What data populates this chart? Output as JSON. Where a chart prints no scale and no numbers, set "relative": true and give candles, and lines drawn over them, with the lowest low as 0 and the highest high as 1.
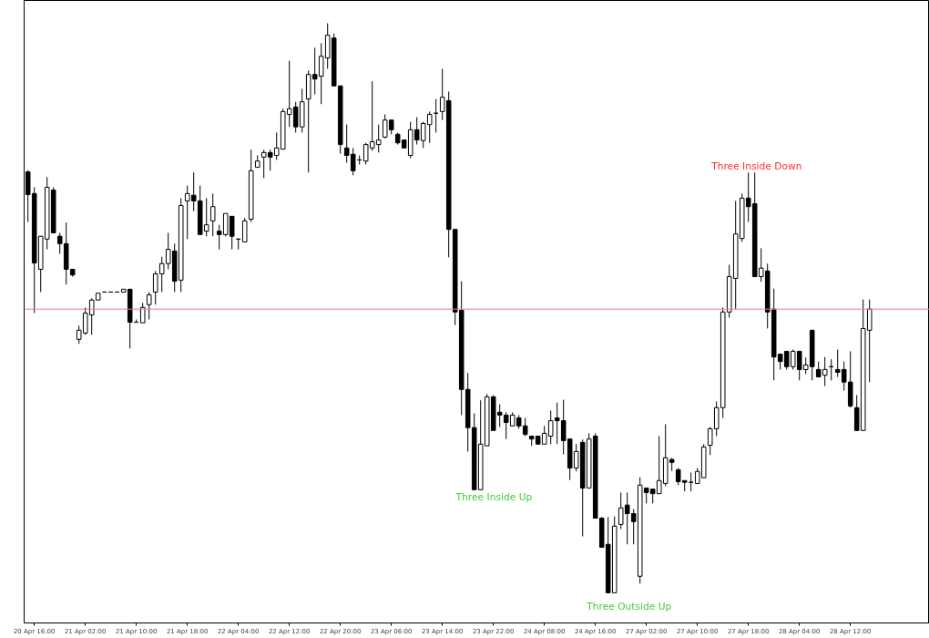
{
  "chart_data": {
    "type": "candlestick",
    "relative": true,
    "grid": false,
    "tick_labels": "x",
    "categories": [
      null,
      "20 Apr 16:00",
      null,
      null,
      null,
      null,
      null,
      null,
      null,
      "21 Apr 02:00",
      null,
      null,
      null,
      null,
      null,
      null,
      null,
      "21 Apr 10:00",
      null,
      null,
      null,
      null,
      null,
      null,
      null,
      "21 Apr 18:00",
      null,
      null,
      null,
      null,
      null,
      null,
      null,
      "22 Apr 04:00",
      null,
      null,
      null,
      null,
      null,
      null,
      null,
      "22 Apr 12:00",
      null,
      null,
      null,
      null,
      null,
      null,
      null,
      "22 Apr 20:00",
      null,
      null,
      null,
      null,
      null,
      null,
      null,
      "23 Apr 06:00",
      null,
      null,
      null,
      null,
      null,
      null,
      null,
      "23 Apr 14:00",
      null,
      null,
      null,
      null,
      null,
      null,
      null,
      "23 Apr 22:00",
      null,
      null,
      null,
      null,
      null,
      null,
      null,
      "24 Apr 08:00",
      null,
      null,
      null,
      null,
      null,
      null,
      null,
      "24 Apr 16:00",
      null,
      null,
      null,
      null,
      null,
      null,
      null,
      "27 Apr 02:00",
      null,
      null,
      null,
      null,
      null,
      null,
      null,
      "27 Apr 10:00",
      null,
      null,
      null,
      null,
      null,
      null,
      null,
      "27 Apr 18:00",
      null,
      null,
      null,
      null,
      null,
      null,
      null,
      "28 Apr 04:00",
      null,
      null,
      null,
      null,
      null,
      null,
      null,
      "28 Apr 12:00",
      null,
      null,
      null
    ],
    "ohlc": [
      [
        0.739,
        0.742,
        0.651,
        0.699
      ],
      [
        0.701,
        0.712,
        0.491,
        0.579
      ],
      [
        0.568,
        0.626,
        0.528,
        0.626
      ],
      [
        0.621,
        0.73,
        0.603,
        0.712
      ],
      [
        0.707,
        0.712,
        0.632,
        0.632
      ],
      [
        0.626,
        0.632,
        0.595,
        0.613
      ],
      [
        0.613,
        0.65,
        0.541,
        0.568
      ],
      [
        0.568,
        0.568,
        0.555,
        0.558
      ],
      [
        0.445,
        0.469,
        0.437,
        0.461
      ],
      [
        0.456,
        0.501,
        0.453,
        0.491
      ],
      [
        0.488,
        0.517,
        0.453,
        0.514
      ],
      [
        0.514,
        0.526,
        0.514,
        0.526
      ],
      [
        0.528,
        0.528,
        0.528,
        0.528
      ],
      [
        0.528,
        0.528,
        0.528,
        0.528
      ],
      [
        0.528,
        0.528,
        0.528,
        0.528
      ],
      [
        0.528,
        0.533,
        0.528,
        0.533
      ],
      [
        0.533,
        0.533,
        0.429,
        0.475
      ],
      [
        0.475,
        0.48,
        0.475,
        0.475
      ],
      [
        0.474,
        0.509,
        0.474,
        0.501
      ],
      [
        0.506,
        0.528,
        0.48,
        0.523
      ],
      [
        0.528,
        0.565,
        0.506,
        0.56
      ],
      [
        0.56,
        0.59,
        0.528,
        0.578
      ],
      [
        0.578,
        0.632,
        0.568,
        0.603
      ],
      [
        0.6,
        0.613,
        0.528,
        0.547
      ],
      [
        0.549,
        0.693,
        0.528,
        0.68
      ],
      [
        0.688,
        0.715,
        0.621,
        0.701
      ],
      [
        0.698,
        0.738,
        0.67,
        0.688
      ],
      [
        0.688,
        0.715,
        0.629,
        0.629
      ],
      [
        0.635,
        0.693,
        0.626,
        0.646
      ],
      [
        0.653,
        0.701,
        0.626,
        0.678
      ],
      [
        0.635,
        0.646,
        0.603,
        0.629
      ],
      [
        0.629,
        0.666,
        0.626,
        0.666
      ],
      [
        0.661,
        0.661,
        0.603,
        0.626
      ],
      [
        0.621,
        0.621,
        0.603,
        0.621
      ],
      [
        0.616,
        0.658,
        0.616,
        0.653
      ],
      [
        0.656,
        0.778,
        0.651,
        0.741
      ],
      [
        0.747,
        0.768,
        0.747,
        0.758
      ],
      [
        0.765,
        0.778,
        0.728,
        0.773
      ],
      [
        0.773,
        0.778,
        0.741,
        0.765
      ],
      [
        0.768,
        0.808,
        0.76,
        0.781
      ],
      [
        0.779,
        0.85,
        0.778,
        0.845
      ],
      [
        0.84,
        0.934,
        0.818,
        0.85
      ],
      [
        0.853,
        0.862,
        0.808,
        0.818
      ],
      [
        0.818,
        0.885,
        0.808,
        0.862
      ],
      [
        0.867,
        0.917,
        0.738,
        0.91
      ],
      [
        0.91,
        0.957,
        0.875,
        0.902
      ],
      [
        0.907,
        0.965,
        0.858,
        0.942
      ],
      [
        0.939,
        1.0,
        0.92,
        0.979
      ],
      [
        0.974,
        0.982,
        0.89,
        0.89
      ],
      [
        0.89,
        0.89,
        0.771,
        0.787
      ],
      [
        0.781,
        0.822,
        0.755,
        0.768
      ],
      [
        0.77,
        0.781,
        0.733,
        0.741
      ],
      [
        0.76,
        0.768,
        0.752,
        0.76
      ],
      [
        0.758,
        0.79,
        0.752,
        0.787
      ],
      [
        0.781,
        0.898,
        0.776,
        0.792
      ],
      [
        0.787,
        0.822,
        0.773,
        0.795
      ],
      [
        0.8,
        0.84,
        0.798,
        0.83
      ],
      [
        0.83,
        0.83,
        0.805,
        0.813
      ],
      [
        0.805,
        0.808,
        0.787,
        0.79
      ],
      [
        0.795,
        0.795,
        0.781,
        0.781
      ],
      [
        0.768,
        0.827,
        0.763,
        0.813
      ],
      [
        0.813,
        0.835,
        0.787,
        0.795
      ],
      [
        0.794,
        0.827,
        0.781,
        0.824
      ],
      [
        0.822,
        0.845,
        0.79,
        0.84
      ],
      [
        0.842,
        0.867,
        0.808,
        0.842
      ],
      [
        0.845,
        0.92,
        0.83,
        0.87
      ],
      [
        0.864,
        0.88,
        0.589,
        0.638
      ],
      [
        0.638,
        0.638,
        0.47,
        0.493
      ],
      [
        0.496,
        0.547,
        0.312,
        0.357
      ],
      [
        0.357,
        0.386,
        0.248,
        0.29
      ],
      [
        0.29,
        0.315,
        0.181,
        0.181
      ],
      [
        0.181,
        0.338,
        0.181,
        0.261
      ],
      [
        0.258,
        0.349,
        0.258,
        0.344
      ],
      [
        0.344,
        0.347,
        0.285,
        0.285
      ],
      [
        0.317,
        0.331,
        0.291,
        0.312
      ],
      [
        0.312,
        0.317,
        0.27,
        0.299
      ],
      [
        0.293,
        0.317,
        0.293,
        0.312
      ],
      [
        0.307,
        0.312,
        0.288,
        0.293
      ],
      [
        0.293,
        0.307,
        0.275,
        0.278
      ],
      [
        0.275,
        0.275,
        0.258,
        0.27
      ],
      [
        0.275,
        0.275,
        0.261,
        0.261
      ],
      [
        0.261,
        0.293,
        0.261,
        0.28
      ],
      [
        0.275,
        0.32,
        0.261,
        0.302
      ],
      [
        0.307,
        0.334,
        0.261,
        0.302
      ],
      [
        0.302,
        0.339,
        0.243,
        0.267
      ],
      [
        0.27,
        0.27,
        0.198,
        0.219
      ],
      [
        0.219,
        0.261,
        0.213,
        0.248
      ],
      [
        0.264,
        0.269,
        0.099,
        0.184
      ],
      [
        0.184,
        0.28,
        0.184,
        0.27
      ],
      [
        0.275,
        0.28,
        0.131,
        0.131
      ],
      [
        0.131,
        0.133,
        0.08,
        0.08
      ],
      [
        0.085,
        0.133,
        0.0,
        0.0
      ],
      [
        0.0,
        0.134,
        0.0,
        0.117
      ],
      [
        0.12,
        0.176,
        0.112,
        0.149
      ],
      [
        0.154,
        0.176,
        0.085,
        0.139
      ],
      [
        0.139,
        0.147,
        0.085,
        0.125
      ],
      [
        0.029,
        0.203,
        0.016,
        0.189
      ],
      [
        0.184,
        0.184,
        0.157,
        0.176
      ],
      [
        0.182,
        0.182,
        0.157,
        0.174
      ],
      [
        0.174,
        0.275,
        0.174,
        0.197
      ],
      [
        0.192,
        0.296,
        0.187,
        0.237
      ],
      [
        0.234,
        0.237,
        0.214,
        0.229
      ],
      [
        0.216,
        0.219,
        0.189,
        0.195
      ],
      [
        0.197,
        0.197,
        0.178,
        0.194
      ],
      [
        0.194,
        0.211,
        0.178,
        0.194
      ],
      [
        0.192,
        0.219,
        0.192,
        0.213
      ],
      [
        0.202,
        0.261,
        0.202,
        0.256
      ],
      [
        0.259,
        0.291,
        0.242,
        0.288
      ],
      [
        0.288,
        0.336,
        0.275,
        0.325
      ],
      [
        0.325,
        0.501,
        0.307,
        0.493
      ],
      [
        0.493,
        0.576,
        0.483,
        0.555
      ],
      [
        0.552,
        0.688,
        0.498,
        0.63
      ],
      [
        0.622,
        0.701,
        0.616,
        0.693
      ],
      [
        0.693,
        0.738,
        0.651,
        0.678
      ],
      [
        0.683,
        0.738,
        0.555,
        0.555
      ],
      [
        0.555,
        0.605,
        0.546,
        0.57
      ],
      [
        0.565,
        0.578,
        0.464,
        0.493
      ],
      [
        0.498,
        0.534,
        0.373,
        0.414
      ],
      [
        0.419,
        0.419,
        0.392,
        0.406
      ],
      [
        0.424,
        0.424,
        0.392,
        0.397
      ],
      [
        0.397,
        0.427,
        0.392,
        0.424
      ],
      [
        0.424,
        0.424,
        0.373,
        0.392
      ],
      [
        0.392,
        0.413,
        0.384,
        0.4
      ],
      [
        0.461,
        0.461,
        0.373,
        0.397
      ],
      [
        0.392,
        0.406,
        0.379,
        0.379
      ],
      [
        0.382,
        0.414,
        0.363,
        0.392
      ],
      [
        0.397,
        0.41,
        0.373,
        0.397
      ],
      [
        0.392,
        0.427,
        0.379,
        0.387
      ],
      [
        0.392,
        0.406,
        0.355,
        0.37
      ],
      [
        0.37,
        0.424,
        0.325,
        0.328
      ],
      [
        0.325,
        0.347,
        0.285,
        0.285
      ],
      [
        0.285,
        0.515,
        0.285,
        0.464
      ],
      [
        0.461,
        0.515,
        0.37,
        0.498
      ]
    ],
    "ref_lines": [
      {
        "axis": "y",
        "value": 0.498,
        "color": "#e88080"
      }
    ],
    "annotations": [
      "Three Inside Up",
      "Three Outside Up",
      "Three Inside Down"
    ]
  }
}
